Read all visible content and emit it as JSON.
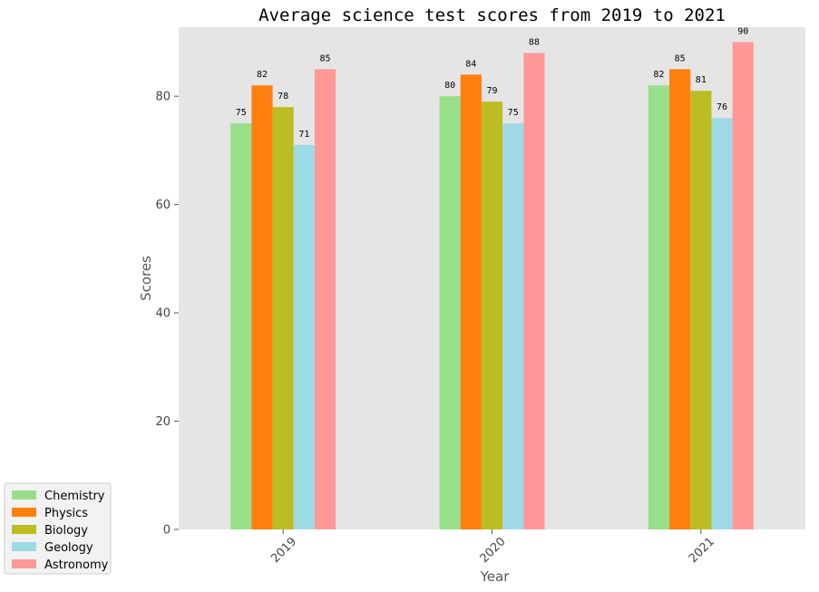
{
  "chart_data": {
    "type": "bar",
    "title": "Average science test scores from 2019 to 2021",
    "xlabel": "Year",
    "ylabel": "Scores",
    "categories": [
      "2019",
      "2020",
      "2021"
    ],
    "ylim": [
      0,
      92.75
    ],
    "yticks": [
      "0",
      "20",
      "40",
      "60",
      "80"
    ],
    "grid": false,
    "legend_position": "bottom-left outside",
    "series": [
      {
        "name": "Chemistry",
        "color": "#98df8a",
        "values": [
          75,
          80,
          82
        ]
      },
      {
        "name": "Physics",
        "color": "#ff7f0e",
        "values": [
          82,
          84,
          85
        ]
      },
      {
        "name": "Biology",
        "color": "#bcbd22",
        "values": [
          78,
          79,
          81
        ]
      },
      {
        "name": "Geology",
        "color": "#9edae5",
        "values": [
          71,
          75,
          76
        ]
      },
      {
        "name": "Astronomy",
        "color": "#ff9896",
        "values": [
          85,
          88,
          90
        ]
      }
    ],
    "plot_background": "#e5e5e5"
  }
}
